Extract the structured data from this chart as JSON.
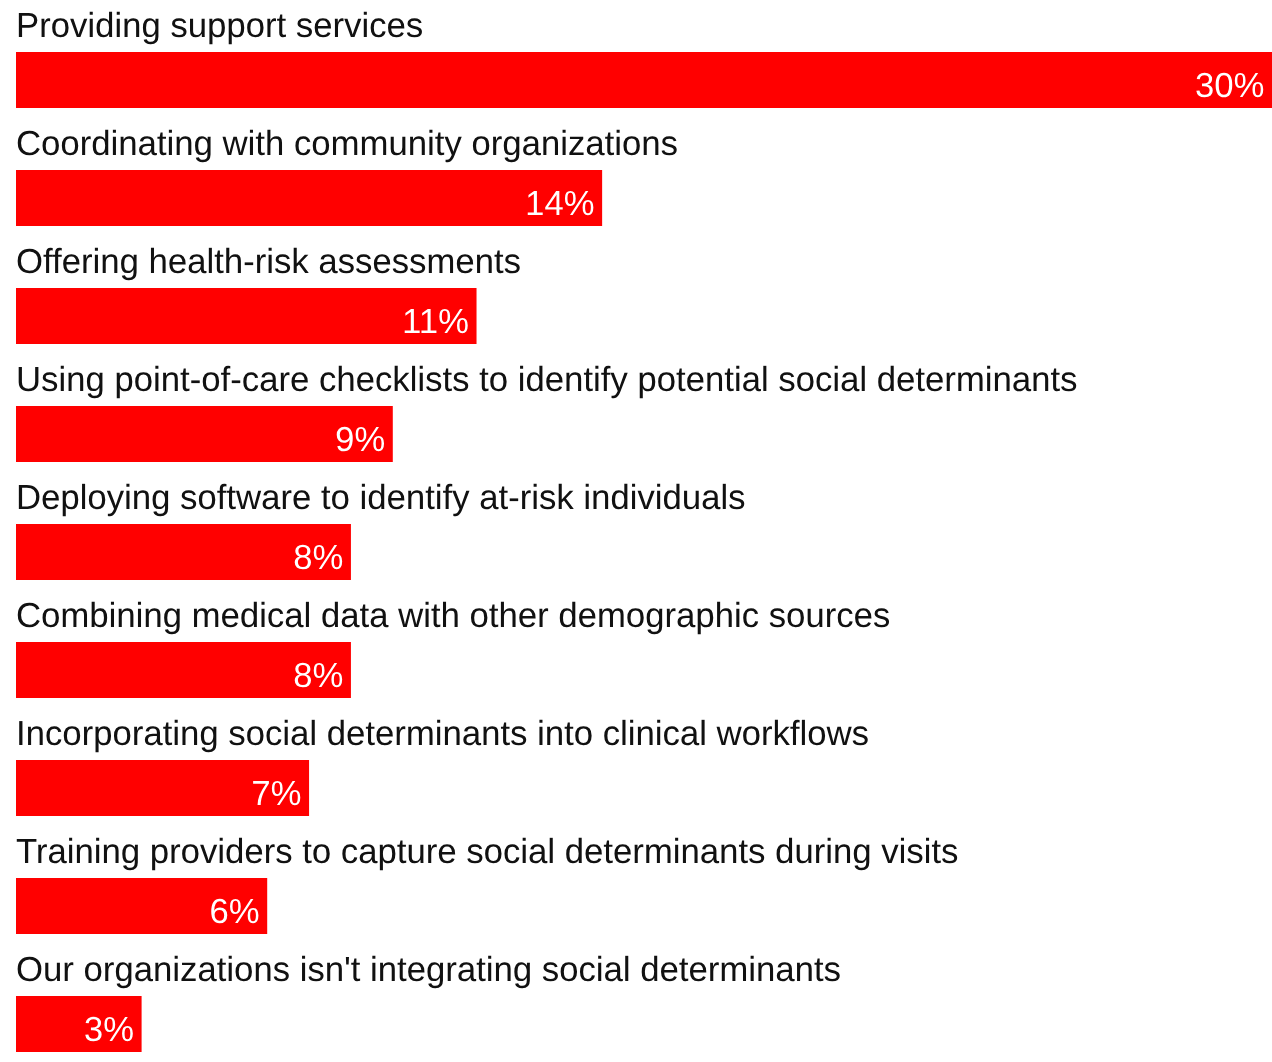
{
  "chart_data": {
    "type": "bar",
    "orientation": "horizontal",
    "color": "#ff0000",
    "categories": [
      "Providing support services",
      "Coordinating with community organizations",
      "Offering health-risk assessments",
      "Using point-of-care checklists to identify potential social determinants",
      "Deploying software to identify at-risk individuals",
      "Combining medical data with other demographic sources",
      "Incorporating social determinants into clinical workflows",
      "Training providers to capture social determinants during visits",
      "Our organizations isn't integrating social determinants"
    ],
    "values": [
      30,
      14,
      11,
      9,
      8,
      8,
      7,
      6,
      3
    ],
    "value_labels": [
      "30%",
      "14%",
      "11%",
      "9%",
      "8%",
      "8%",
      "7%",
      "6%",
      "3%"
    ]
  }
}
